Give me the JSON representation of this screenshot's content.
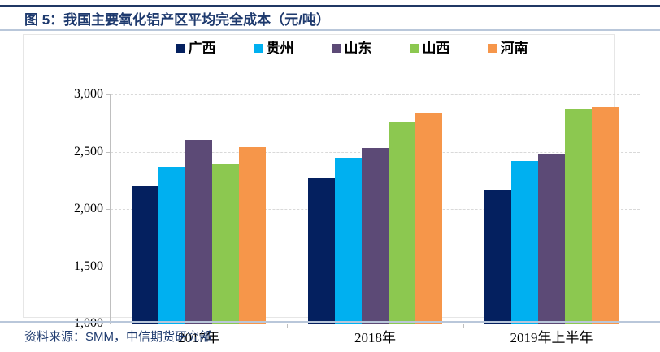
{
  "header": {
    "title": "图 5：我国主要氧化铝产区平均完全成本（元/吨）"
  },
  "footer": {
    "source": "资料来源：SMM，中信期货研究部"
  },
  "colors": {
    "title_navy": "#1E3A6E",
    "rule_navy": "#203864",
    "rule_light_blue": "#B9C7DA",
    "gridline": "#D9D9D9",
    "axis_line": "#BFBFBF",
    "axis_text": "#000000"
  },
  "chart_data": {
    "type": "bar",
    "title": "我国主要氧化铝产区平均完全成本（元/吨）",
    "categories": [
      "2017年",
      "2018年",
      "2019年上半年"
    ],
    "series": [
      {
        "name": "广西",
        "color": "#04205F",
        "values": [
          2200,
          2270,
          2160
        ]
      },
      {
        "name": "贵州",
        "color": "#00B0F0",
        "values": [
          2360,
          2450,
          2420
        ]
      },
      {
        "name": "山东",
        "color": "#5C4A76",
        "values": [
          2600,
          2530,
          2480
        ]
      },
      {
        "name": "山西",
        "color": "#8CC850",
        "values": [
          2390,
          2760,
          2870
        ]
      },
      {
        "name": "河南",
        "color": "#F6964A",
        "values": [
          2540,
          2840,
          2890
        ]
      }
    ],
    "ylim": [
      1000,
      3000
    ],
    "yticks": [
      1000,
      1500,
      2000,
      2500,
      3000
    ],
    "ytick_labels": [
      "1,000",
      "1,500",
      "2,000",
      "2,500",
      "3,000"
    ],
    "grid": "horizontal dashed",
    "legend_position": "top-center",
    "xlabel": "",
    "ylabel": ""
  }
}
